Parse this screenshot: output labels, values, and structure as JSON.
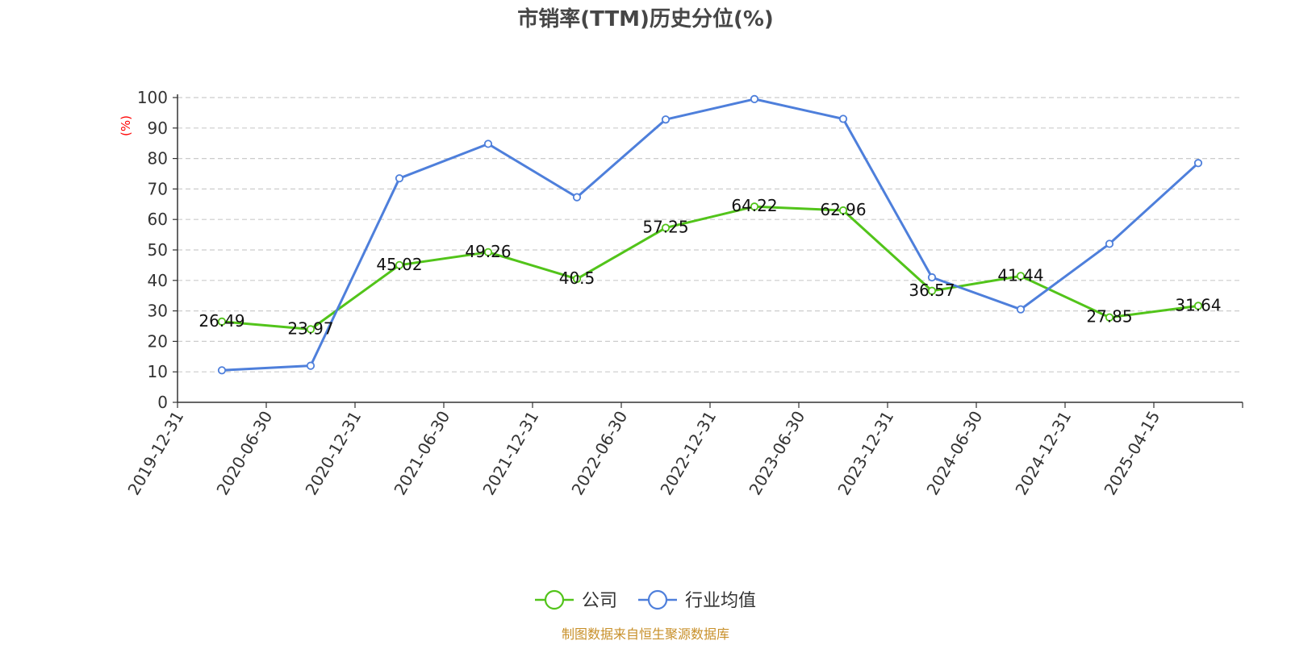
{
  "chart_data": {
    "type": "line",
    "title": "市销率(TTM)历史分位(%)",
    "xlabel": "",
    "ylabel": "(%)",
    "ylim": [
      0,
      100
    ],
    "y_ticks": [
      0,
      10,
      20,
      30,
      40,
      50,
      60,
      70,
      80,
      90,
      100
    ],
    "categories": [
      "2019-12-31",
      "2020-06-30",
      "2020-12-31",
      "2021-06-30",
      "2021-12-31",
      "2022-06-30",
      "2022-12-31",
      "2023-06-30",
      "2023-12-31",
      "2024-06-30",
      "2024-12-31",
      "2025-04-15"
    ],
    "grid": true,
    "legend_position": "bottom-center",
    "series": [
      {
        "name": "公司",
        "color": "#52c41a",
        "values": [
          26.49,
          23.97,
          45.02,
          49.26,
          40.5,
          57.25,
          64.22,
          62.96,
          36.57,
          41.44,
          27.85,
          31.64
        ],
        "data_labels": [
          "26.49",
          "23.97",
          "45.02",
          "49.26",
          "40.5",
          "57.25",
          "64.22",
          "62.96",
          "36.57",
          "41.44",
          "27.85",
          "31.64"
        ]
      },
      {
        "name": "行业均值",
        "color": "#4e7fdb",
        "values": [
          10.5,
          12.0,
          73.5,
          84.8,
          67.3,
          92.8,
          99.5,
          93.0,
          41.0,
          30.5,
          52.0,
          78.5
        ]
      }
    ],
    "source": "制图数据来自恒生聚源数据库"
  },
  "colors": {
    "title": "#464646",
    "axis": "#333333",
    "grid": "#cccccc",
    "ylabel": "#ff0000",
    "source": "#c8902a"
  }
}
